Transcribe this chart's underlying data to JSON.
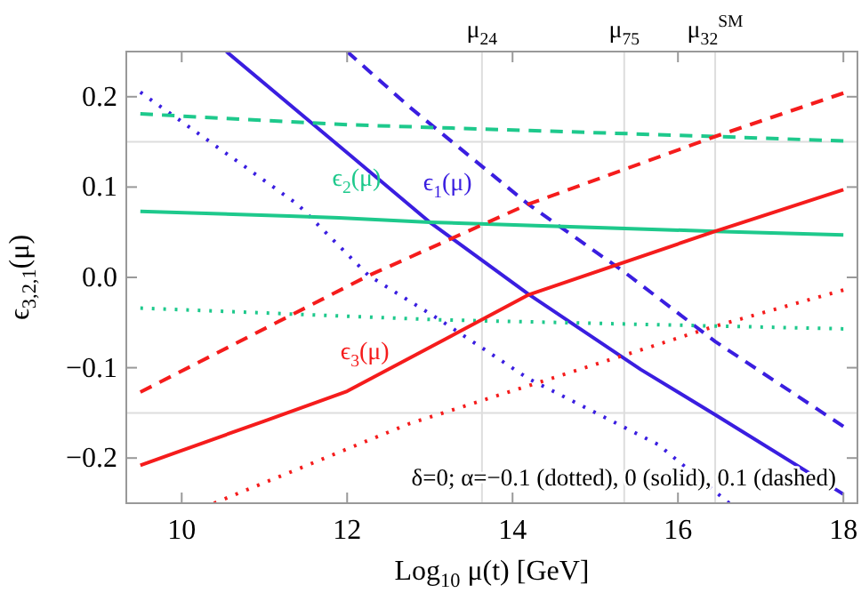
{
  "chart_data": {
    "type": "line",
    "xlabel": "Log$_{10}$ μ(t) [GeV]",
    "ylabel": "ϵ$_{3,2,1}$(μ)",
    "xlim": [
      9.33,
      18.17
    ],
    "ylim": [
      -0.25,
      0.25
    ],
    "xticks": [
      10,
      12,
      14,
      16,
      18
    ],
    "yticks": [
      {
        "value": -0.2,
        "label": "−0.2"
      },
      {
        "value": -0.1,
        "label": "−0.1"
      },
      {
        "value": 0,
        "label": "0.0"
      },
      {
        "value": 0.1,
        "label": "0.1"
      },
      {
        "value": 0.2,
        "label": "0.2"
      }
    ],
    "grid": false,
    "legend": false,
    "ref_lines": [
      {
        "axis": "y",
        "value": 0.15,
        "label": null,
        "color": "#dddddd"
      },
      {
        "axis": "y",
        "value": -0.15,
        "label": null,
        "color": "#dddddd"
      },
      {
        "axis": "x",
        "value": 13.63,
        "label": "μ$_{24}$",
        "color": "#dddddd"
      },
      {
        "axis": "x",
        "value": 15.35,
        "label": "μ$_{75}$",
        "color": "#dddddd"
      },
      {
        "axis": "x",
        "value": 16.45,
        "label": "μ$_{32}$$^{SM}$",
        "color": "#dddddd"
      }
    ],
    "series": [
      {
        "name": "ϵ$_{1}$(μ)",
        "color": "#3a1ee0",
        "line_style": "solid",
        "x": [
          10.54,
          12,
          13,
          14.2,
          15.55,
          16.45,
          18
        ],
        "values": [
          0.25,
          0.138,
          0.061,
          -0.019,
          -0.102,
          -0.152,
          -0.24
        ]
      },
      {
        "color": "#3a1ee0",
        "line_style": "dashed",
        "x": [
          12,
          12.75,
          14.19,
          15.35,
          16.45,
          18
        ],
        "values": [
          0.25,
          0.189,
          0.081,
          0.006,
          -0.071,
          -0.165
        ]
      },
      {
        "color": "#3a1ee0",
        "line_style": "dotted",
        "x": [
          9.5,
          11.4,
          12.26,
          13.12,
          14.19,
          15.76,
          16.62
        ],
        "values": [
          0.205,
          0.081,
          0.002,
          -0.047,
          -0.112,
          -0.185,
          -0.25
        ]
      },
      {
        "name": "ϵ$_{2}$(μ)",
        "color": "#1ec98c",
        "line_style": "solid",
        "x": [
          9.5,
          11.3,
          11.9,
          13,
          16.45,
          18
        ],
        "values": [
          0.073,
          0.068,
          0.066,
          0.061,
          0.051,
          0.047
        ]
      },
      {
        "color": "#1ec98c",
        "line_style": "dashed",
        "x": [
          9.5,
          12,
          16.45,
          18
        ],
        "values": [
          0.181,
          0.169,
          0.156,
          0.151
        ]
      },
      {
        "color": "#1ec98c",
        "line_style": "dotted",
        "x": [
          9.5,
          13.12,
          18
        ],
        "values": [
          -0.034,
          -0.047,
          -0.057
        ]
      },
      {
        "name": "ϵ$_{3}$(μ)",
        "color": "#f51c1c",
        "line_style": "solid",
        "x": [
          9.5,
          11,
          12,
          14.2,
          16.45,
          18
        ],
        "values": [
          -0.208,
          -0.159,
          -0.126,
          -0.019,
          0.051,
          0.097
        ]
      },
      {
        "color": "#f51c1c",
        "line_style": "dashed",
        "x": [
          9.5,
          12.26,
          12.75,
          14.19,
          16.45,
          18
        ],
        "values": [
          -0.127,
          0.002,
          0.022,
          0.081,
          0.156,
          0.204
        ]
      },
      {
        "color": "#f51c1c",
        "line_style": "dotted",
        "x": [
          10.39,
          12.75,
          14.19,
          16.45,
          18
        ],
        "values": [
          -0.25,
          -0.162,
          -0.12,
          -0.054,
          -0.014
        ]
      }
    ],
    "annotations": [
      "δ=0; α=−0.1 (dotted), 0 (solid), 0.1 (dashed)"
    ]
  }
}
